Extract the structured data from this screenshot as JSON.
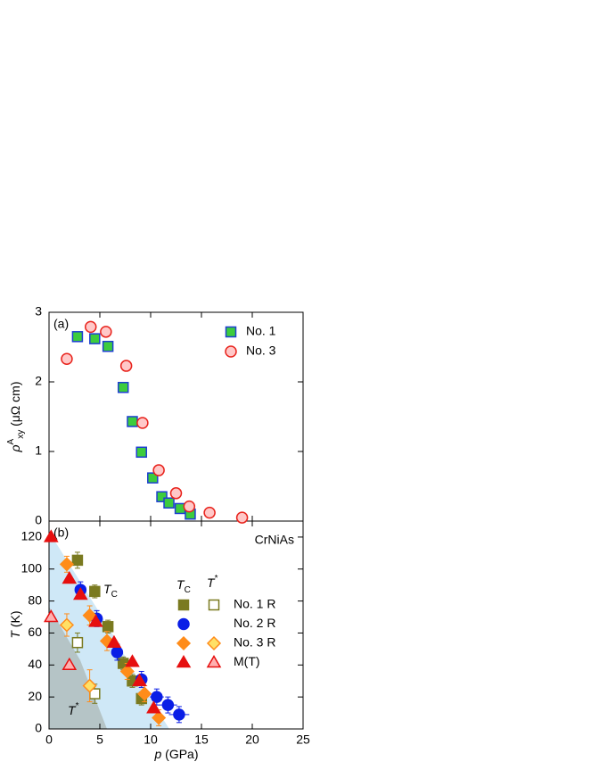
{
  "chart_data": [
    {
      "type": "scatter",
      "label": "(a)",
      "ylabel": {
        "symbol": "ρ",
        "sup": "A",
        "sub": "xy",
        "unit": " (μΩ cm)"
      },
      "xlim": [
        0,
        25
      ],
      "xticks": [
        0,
        5,
        10,
        15,
        20,
        25
      ],
      "show_xtick_labels": false,
      "ylim": [
        0,
        3
      ],
      "yticks": [
        0,
        1,
        2,
        3
      ],
      "legend": "upper right",
      "series": [
        {
          "name": "No. 1",
          "marker": "square",
          "color": "#1d3fd0",
          "fill": "#3dcc3d",
          "x": [
            2.8,
            4.5,
            5.8,
            7.3,
            8.2,
            9.1,
            10.2,
            11.1,
            11.8,
            12.9,
            13.9
          ],
          "values": [
            2.65,
            2.62,
            2.51,
            1.92,
            1.43,
            0.99,
            0.62,
            0.35,
            0.26,
            0.18,
            0.1
          ]
        },
        {
          "name": "No. 3",
          "marker": "circle",
          "color": "#e8231c",
          "fill": "#ffc8c8",
          "x": [
            1.75,
            4.1,
            5.6,
            7.6,
            9.2,
            10.8,
            12.5,
            13.8,
            15.8,
            19.0
          ],
          "values": [
            2.33,
            2.79,
            2.72,
            2.23,
            1.41,
            0.73,
            0.4,
            0.21,
            0.12,
            0.05
          ]
        }
      ]
    },
    {
      "type": "scatter",
      "label": "(b)",
      "annotation": "CrNiAs",
      "ylabel": {
        "symbol": "T",
        "unit": " (K)"
      },
      "xlabel": {
        "symbol": "p",
        "unit": " (GPa)"
      },
      "legend_headers": {
        "tc": {
          "symbol": "T",
          "sub": "C"
        },
        "tstar": {
          "symbol": "T",
          "sup": "*"
        }
      },
      "phase_labels": {
        "tc": {
          "symbol": "T",
          "sub": "C"
        },
        "tstar": {
          "symbol": "T",
          "sup": "*"
        }
      },
      "xlim": [
        0,
        25
      ],
      "xticks": [
        0,
        5,
        10,
        15,
        20,
        25
      ],
      "show_xtick_labels": true,
      "ylim": [
        0,
        130
      ],
      "yticks": [
        0,
        20,
        40,
        60,
        80,
        100,
        120
      ],
      "legend": "right",
      "series": [
        {
          "name": "No. 1 R",
          "marker": "square",
          "color": "#7a7a20",
          "tc": {
            "x": [
              2.8,
              4.5,
              5.8,
              7.3,
              8.2,
              9.1
            ],
            "values": [
              105.5,
              86,
              64,
              41,
              30,
              19
            ],
            "errors": [
              5,
              4,
              4,
              4,
              4,
              4
            ]
          },
          "tstar": {
            "x": [
              2.8,
              4.5
            ],
            "values": [
              54,
              22
            ],
            "errors": [
              6,
              6
            ],
            "fill": "#ffffff"
          }
        },
        {
          "name": "No. 2 R",
          "marker": "circle",
          "color": "#0a1ee6",
          "tc": {
            "x": [
              3.1,
              4.7,
              6.7,
              9.1,
              10.6,
              11.7,
              12.8
            ],
            "values": [
              87,
              69,
              48,
              31,
              20,
              15,
              9
            ],
            "errors": [
              5,
              5,
              5,
              5,
              5,
              5,
              5
            ],
            "xerrors": [
              0.5,
              0.5,
              0.5,
              0.5,
              0.7,
              0.9,
              1.0
            ]
          }
        },
        {
          "name": "No. 3 R",
          "marker": "diamond",
          "color": "#ff8c1a",
          "tc": {
            "x": [
              1.75,
              4.0,
              5.7,
              7.7,
              9.4,
              10.8
            ],
            "values": [
              103,
              71,
              55,
              36,
              22,
              7
            ],
            "errors": [
              5,
              6,
              6,
              5,
              5,
              5
            ]
          },
          "tstar": {
            "x": [
              1.75,
              4.0
            ],
            "values": [
              65,
              27
            ],
            "errors": [
              7,
              10
            ],
            "fill": "#ffe066"
          }
        },
        {
          "name": "M(T)",
          "marker": "triangle",
          "color": "#e60f0f",
          "tc": {
            "x": [
              0.2,
              2.0,
              3.1,
              4.6,
              6.4,
              8.2,
              8.9,
              10.3
            ],
            "values": [
              120,
              94,
              84,
              67,
              54,
              42,
              30,
              13
            ]
          },
          "tstar": {
            "x": [
              0.2,
              2.0
            ],
            "values": [
              70,
              40
            ],
            "fill": "#ffb0b0"
          }
        }
      ]
    }
  ]
}
